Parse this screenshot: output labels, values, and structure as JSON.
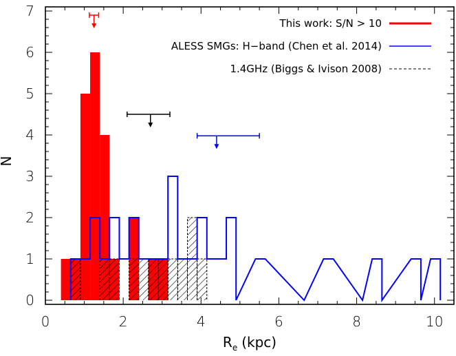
{
  "chart_data": {
    "type": "bar",
    "title": "",
    "xlabel": "R",
    "xlabel_subscript": "e",
    "xlabel_unit": "(kpc)",
    "ylabel": "N",
    "xlim": [
      0,
      10.5
    ],
    "ylim": [
      -0.1,
      7.1
    ],
    "x_ticks": [
      0,
      2,
      4,
      6,
      8,
      10
    ],
    "y_ticks": [
      0,
      1,
      2,
      3,
      4,
      5,
      6,
      7
    ],
    "bin_width": 0.25,
    "legend_position": "top-right",
    "series": [
      {
        "name": "This work: S/N > 10",
        "style": "filled",
        "color": "#ff0000",
        "bins": [
          {
            "x0": 0.4,
            "n": 1
          },
          {
            "x0": 0.65,
            "n": 1
          },
          {
            "x0": 0.9,
            "n": 5
          },
          {
            "x0": 1.15,
            "n": 6
          },
          {
            "x0": 1.4,
            "n": 4
          },
          {
            "x0": 1.65,
            "n": 1
          },
          {
            "x0": 2.15,
            "n": 2
          },
          {
            "x0": 2.65,
            "n": 1
          },
          {
            "x0": 2.9,
            "n": 1
          }
        ]
      },
      {
        "name": "ALESS SMGs: H−band (Chen et al. 2014)",
        "style": "step",
        "color": "#0000ff",
        "bins": [
          {
            "x0": 0.65,
            "n": 1
          },
          {
            "x0": 0.9,
            "n": 1
          },
          {
            "x0": 1.15,
            "n": 2
          },
          {
            "x0": 1.4,
            "n": 1
          },
          {
            "x0": 1.65,
            "n": 2
          },
          {
            "x0": 1.9,
            "n": 1
          },
          {
            "x0": 2.15,
            "n": 2
          },
          {
            "x0": 2.4,
            "n": 1
          },
          {
            "x0": 2.65,
            "n": 1
          },
          {
            "x0": 2.9,
            "n": 1
          },
          {
            "x0": 3.15,
            "n": 3
          },
          {
            "x0": 3.4,
            "n": 1
          },
          {
            "x0": 3.65,
            "n": 1
          },
          {
            "x0": 3.9,
            "n": 2
          },
          {
            "x0": 4.15,
            "n": 1
          },
          {
            "x0": 4.4,
            "n": 1
          },
          {
            "x0": 4.65,
            "n": 2
          },
          {
            "x0": 4.9,
            "n": 0
          },
          {
            "x0": 5.4,
            "n": 1
          },
          {
            "x0": 6.65,
            "n": 0
          },
          {
            "x0": 7.15,
            "n": 1
          },
          {
            "x0": 8.15,
            "n": 0
          },
          {
            "x0": 8.4,
            "n": 1
          },
          {
            "x0": 8.65,
            "n": 0
          },
          {
            "x0": 9.4,
            "n": 1
          },
          {
            "x0": 9.65,
            "n": 0
          },
          {
            "x0": 9.9,
            "n": 1
          },
          {
            "x0": 10.15,
            "n": 0
          }
        ]
      },
      {
        "name": "1.4GHz (Biggs & Ivison 2008)",
        "style": "hatched",
        "color": "#000000",
        "bins": [
          {
            "x0": 0.65,
            "n": 1
          },
          {
            "x0": 1.4,
            "n": 1
          },
          {
            "x0": 1.65,
            "n": 1
          },
          {
            "x0": 2.15,
            "n": 1
          },
          {
            "x0": 2.4,
            "n": 1
          },
          {
            "x0": 2.65,
            "n": 1
          },
          {
            "x0": 2.9,
            "n": 1
          },
          {
            "x0": 3.15,
            "n": 1
          },
          {
            "x0": 3.4,
            "n": 1
          },
          {
            "x0": 3.65,
            "n": 2
          },
          {
            "x0": 3.9,
            "n": 1
          }
        ]
      }
    ],
    "error_markers": [
      {
        "color": "#ff0000",
        "x": 1.25,
        "xerr_low": 0.12,
        "xerr_high": 0.12,
        "y": 6.9,
        "arrow_len": 0.3
      },
      {
        "color": "#000000",
        "x": 2.7,
        "xerr_low": 0.6,
        "xerr_high": 0.5,
        "y": 4.5,
        "arrow_len": 0.3
      },
      {
        "color": "#0000ff",
        "x": 4.4,
        "xerr_low": 0.5,
        "xerr_high": 1.1,
        "y": 3.98,
        "arrow_len": 0.3
      }
    ]
  }
}
